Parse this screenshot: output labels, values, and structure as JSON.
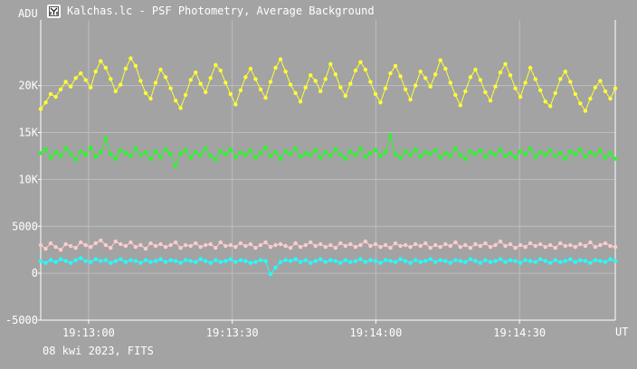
{
  "window": {
    "title": "Kalchas.lc - PSF Photometry, Average Background",
    "footer": "08 kwi 2023, FITS"
  },
  "chart_data": {
    "type": "line",
    "title": "Kalchas.lc - PSF Photometry, Average Background",
    "ylabel": "ADU",
    "xlabel": "UT",
    "x_range": [
      "19:12:50",
      "19:14:50"
    ],
    "ylim": [
      -5000,
      27000
    ],
    "y_ticks": [
      {
        "value": -5000,
        "label": "-5000"
      },
      {
        "value": 0,
        "label": "0"
      },
      {
        "value": 5000,
        "label": "5000"
      },
      {
        "value": 10000,
        "label": "10K"
      },
      {
        "value": 15000,
        "label": "15K"
      },
      {
        "value": 20000,
        "label": "20K"
      }
    ],
    "x_ticks": [
      "19:13:00",
      "19:13:30",
      "19:14:00",
      "19:14:30"
    ],
    "grid": true,
    "colors": {
      "background": "#a3a3a3",
      "grid": "#bdbdbd",
      "axis": "#ffffff",
      "text": "#ffffff"
    },
    "series": [
      {
        "color": "#ffff33",
        "marker": "circle",
        "values": [
          17500,
          18200,
          19100,
          18800,
          19600,
          20400,
          19900,
          20800,
          21300,
          20600,
          19800,
          21500,
          22600,
          21900,
          20700,
          19400,
          20100,
          21800,
          22900,
          22100,
          20500,
          19200,
          18600,
          20300,
          21700,
          20900,
          19700,
          18400,
          17600,
          19000,
          20600,
          21400,
          20200,
          19300,
          20800,
          22200,
          21600,
          20300,
          19100,
          18000,
          19500,
          20900,
          21800,
          20700,
          19600,
          18700,
          20400,
          21900,
          22800,
          21500,
          20100,
          19200,
          18300,
          19800,
          21100,
          20500,
          19400,
          20700,
          22300,
          21200,
          19800,
          18900,
          20200,
          21600,
          22500,
          21700,
          20400,
          19100,
          18200,
          19700,
          21300,
          22100,
          21000,
          19600,
          18500,
          20000,
          21500,
          20800,
          19900,
          21200,
          22700,
          21800,
          20300,
          19000,
          17900,
          19400,
          20900,
          21700,
          20600,
          19300,
          18400,
          19900,
          21400,
          22300,
          21100,
          19700,
          18800,
          20300,
          21900,
          20700,
          19500,
          18300,
          17800,
          19200,
          20700,
          21500,
          20400,
          19100,
          18100,
          17300,
          18600,
          19800,
          20500,
          19400,
          18600,
          19700
        ]
      },
      {
        "color": "#22ff22",
        "marker": "circle",
        "values": [
          12800,
          13200,
          12300,
          12900,
          12500,
          13300,
          12700,
          12100,
          13000,
          12600,
          13400,
          12400,
          12900,
          14400,
          12700,
          12200,
          13100,
          12800,
          12500,
          13300,
          12600,
          12900,
          12200,
          13000,
          12400,
          13200,
          12700,
          11400,
          12800,
          13100,
          12300,
          12900,
          12600,
          13300,
          12500,
          12100,
          13000,
          12700,
          13200,
          12400,
          12900,
          12600,
          13100,
          12300,
          12800,
          13400,
          12500,
          12900,
          12200,
          13000,
          12700,
          13300,
          12400,
          12800,
          12600,
          13100,
          12300,
          12900,
          12500,
          13200,
          12700,
          12200,
          13000,
          12600,
          13300,
          12400,
          12800,
          13100,
          12500,
          12900,
          14600,
          12700,
          12300,
          13000,
          12600,
          13200,
          12400,
          12900,
          12700,
          13100,
          12300,
          12800,
          12500,
          13300,
          12600,
          12200,
          13000,
          12700,
          13100,
          12400,
          12900,
          12600,
          13200,
          12500,
          12800,
          12300,
          13000,
          12700,
          13300,
          12400,
          12900,
          12600,
          13100,
          12500,
          12800,
          12200,
          13000,
          12700,
          13200,
          12400,
          12900,
          12600,
          13100,
          12300,
          12800,
          12200
        ]
      },
      {
        "color": "#ffcccc",
        "marker": "circle",
        "values": [
          3000,
          2600,
          3200,
          2800,
          2500,
          3100,
          2900,
          2700,
          3300,
          3000,
          2800,
          3200,
          3500,
          3000,
          2700,
          3400,
          3100,
          2900,
          3300,
          2800,
          3000,
          2600,
          3200,
          2900,
          3100,
          2800,
          3000,
          3300,
          2700,
          3000,
          2900,
          3200,
          2800,
          3000,
          3100,
          2700,
          3300,
          2900,
          3000,
          2800,
          3200,
          2900,
          3100,
          2700,
          3000,
          3300,
          2800,
          3000,
          3100,
          2900,
          2700,
          3200,
          2800,
          3000,
          3300,
          2900,
          3100,
          2800,
          3000,
          2700,
          3200,
          2900,
          3100,
          2800,
          3000,
          3400,
          2900,
          3100,
          2800,
          3000,
          2700,
          3200,
          2900,
          3000,
          2800,
          3100,
          2900,
          3200,
          2700,
          3000,
          2800,
          3100,
          2900,
          3300,
          2800,
          3000,
          2700,
          3100,
          2900,
          3200,
          2800,
          3000,
          3400,
          2900,
          3100,
          2700,
          3000,
          2800,
          3200,
          2900,
          3100,
          2800,
          3000,
          2700,
          3200,
          2900,
          3000,
          2800,
          3100,
          2900,
          3300,
          2800,
          3000,
          3200,
          2900,
          2800
        ]
      },
      {
        "color": "#22ffff",
        "marker": "circle",
        "values": [
          1300,
          1100,
          1400,
          1200,
          1500,
          1300,
          1100,
          1400,
          1600,
          1300,
          1200,
          1500,
          1300,
          1400,
          1100,
          1300,
          1500,
          1200,
          1400,
          1300,
          1100,
          1400,
          1200,
          1300,
          1500,
          1200,
          1400,
          1300,
          1100,
          1400,
          1300,
          1200,
          1500,
          1300,
          1100,
          1400,
          1200,
          1300,
          1500,
          1200,
          1400,
          1300,
          1100,
          1200,
          1400,
          1300,
          -100,
          600,
          1200,
          1400,
          1300,
          1500,
          1200,
          1400,
          1100,
          1300,
          1500,
          1200,
          1400,
          1300,
          1100,
          1400,
          1200,
          1300,
          1500,
          1200,
          1400,
          1300,
          1100,
          1400,
          1300,
          1200,
          1500,
          1300,
          1100,
          1400,
          1200,
          1300,
          1500,
          1200,
          1400,
          1300,
          1100,
          1400,
          1300,
          1200,
          1500,
          1300,
          1100,
          1400,
          1200,
          1300,
          1500,
          1200,
          1400,
          1300,
          1100,
          1400,
          1300,
          1200,
          1500,
          1300,
          1100,
          1400,
          1200,
          1300,
          1500,
          1200,
          1400,
          1300,
          1100,
          1400,
          1300,
          1200,
          1500,
          1300
        ]
      }
    ]
  }
}
